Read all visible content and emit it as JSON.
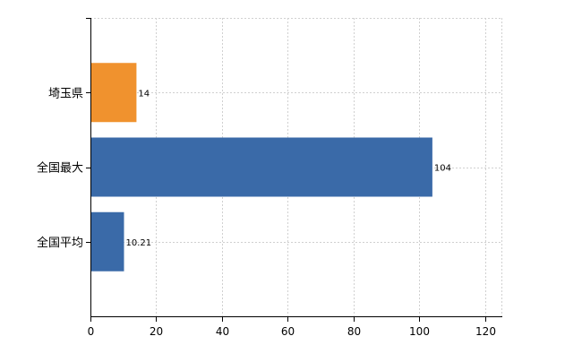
{
  "chart_data": {
    "type": "bar",
    "orientation": "horizontal",
    "categories": [
      "埼玉県",
      "全国最大",
      "全国平均"
    ],
    "values": [
      14,
      104,
      10.21
    ],
    "data_labels": [
      "14",
      "104",
      "10.21"
    ],
    "colors": [
      "#F0922E",
      "#3A6AA8",
      "#3A6AA8"
    ],
    "xlim": [
      0,
      125
    ],
    "xticks": [
      0,
      20,
      40,
      60,
      80,
      100,
      120
    ],
    "xtick_labels": [
      "0",
      "20",
      "40",
      "60",
      "80",
      "100",
      "120"
    ],
    "grid": true,
    "legend": "none"
  }
}
